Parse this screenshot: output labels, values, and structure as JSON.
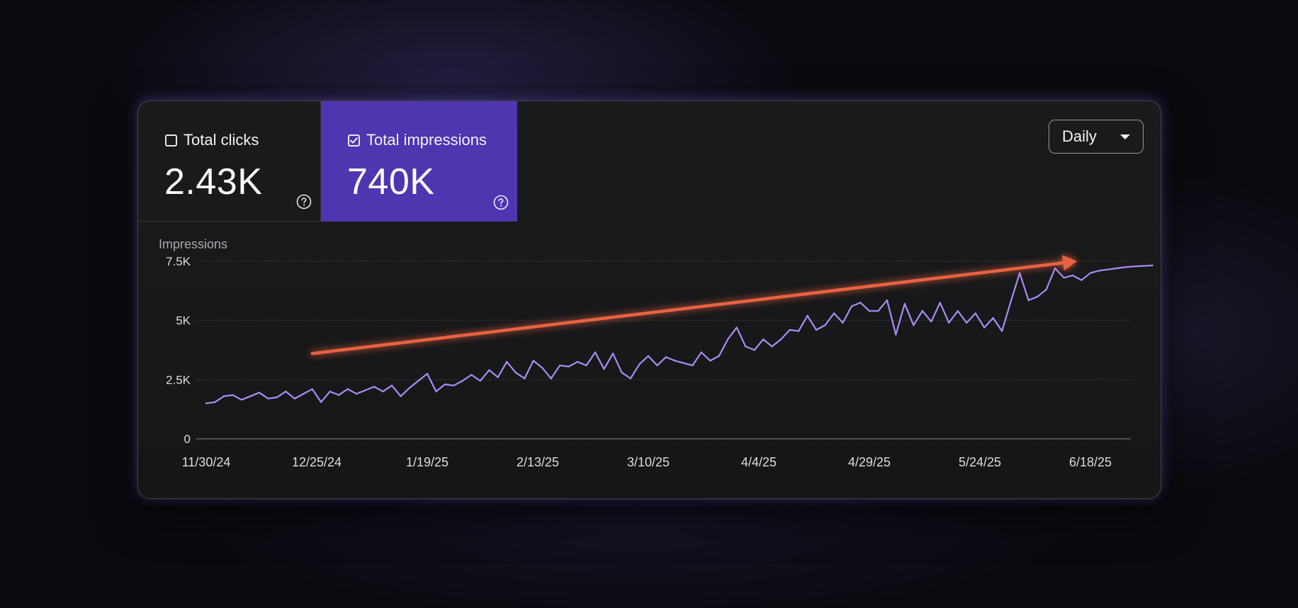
{
  "metrics": {
    "clicks": {
      "label": "Total clicks",
      "value": "2.43K",
      "checked": false
    },
    "impressions": {
      "label": "Total impressions",
      "value": "740K",
      "checked": true
    }
  },
  "dropdown": {
    "selected": "Daily"
  },
  "icons": {
    "help": "help-circle-icon",
    "checkbox_on": "check-icon",
    "caret": "chevron-down-icon"
  },
  "colors": {
    "accent": "#4f35b0",
    "line": "#a98df5",
    "arrow": "#e8623f"
  },
  "chart_data": {
    "type": "line",
    "ylabel": "Impressions",
    "ylim": [
      0,
      7500
    ],
    "yticks": [
      {
        "value": 0,
        "label": "0"
      },
      {
        "value": 2500,
        "label": "2.5K"
      },
      {
        "value": 5000,
        "label": "5K"
      },
      {
        "value": 7500,
        "label": "7.5K"
      }
    ],
    "xlim": [
      "2024-11-30",
      "2025-07-04"
    ],
    "xticks": [
      {
        "date": "2024-11-30",
        "label": "11/30/24"
      },
      {
        "date": "2024-12-25",
        "label": "12/25/24"
      },
      {
        "date": "2025-01-19",
        "label": "1/19/25"
      },
      {
        "date": "2025-02-13",
        "label": "2/13/25"
      },
      {
        "date": "2025-03-10",
        "label": "3/10/25"
      },
      {
        "date": "2025-04-04",
        "label": "4/4/25"
      },
      {
        "date": "2025-04-29",
        "label": "4/29/25"
      },
      {
        "date": "2025-05-24",
        "label": "5/24/25"
      },
      {
        "date": "2025-06-18",
        "label": "6/18/25"
      }
    ],
    "grid": true,
    "series": [
      {
        "name": "",
        "x": [
          "2024-11-30",
          "2024-12-02",
          "2024-12-04",
          "2024-12-06",
          "2024-12-08",
          "2024-12-10",
          "2024-12-12",
          "2024-12-14",
          "2024-12-16",
          "2024-12-18",
          "2024-12-20",
          "2024-12-22",
          "2024-12-24",
          "2024-12-26",
          "2024-12-28",
          "2024-12-30",
          "2025-01-01",
          "2025-01-03",
          "2025-01-05",
          "2025-01-07",
          "2025-01-09",
          "2025-01-11",
          "2025-01-13",
          "2025-01-15",
          "2025-01-17",
          "2025-01-19",
          "2025-01-21",
          "2025-01-23",
          "2025-01-25",
          "2025-01-27",
          "2025-01-29",
          "2025-01-31",
          "2025-02-02",
          "2025-02-04",
          "2025-02-06",
          "2025-02-08",
          "2025-02-10",
          "2025-02-12",
          "2025-02-14",
          "2025-02-16",
          "2025-02-18",
          "2025-02-20",
          "2025-02-22",
          "2025-02-24",
          "2025-02-26",
          "2025-02-28",
          "2025-03-02",
          "2025-03-04",
          "2025-03-06",
          "2025-03-08",
          "2025-03-10",
          "2025-03-12",
          "2025-03-14",
          "2025-03-16",
          "2025-03-18",
          "2025-03-20",
          "2025-03-22",
          "2025-03-24",
          "2025-03-26",
          "2025-03-28",
          "2025-03-30",
          "2025-04-01",
          "2025-04-03",
          "2025-04-05",
          "2025-04-07",
          "2025-04-09",
          "2025-04-11",
          "2025-04-13",
          "2025-04-15",
          "2025-04-17",
          "2025-04-19",
          "2025-04-21",
          "2025-04-23",
          "2025-04-25",
          "2025-04-27",
          "2025-04-29",
          "2025-05-01",
          "2025-05-03",
          "2025-05-05",
          "2025-05-07",
          "2025-05-09",
          "2025-05-11",
          "2025-05-13",
          "2025-05-15",
          "2025-05-17",
          "2025-05-19",
          "2025-05-21",
          "2025-05-23",
          "2025-05-25",
          "2025-05-27",
          "2025-05-29",
          "2025-05-31",
          "2025-06-02",
          "2025-06-04",
          "2025-06-06",
          "2025-06-08",
          "2025-06-10",
          "2025-06-12",
          "2025-06-14",
          "2025-06-16",
          "2025-06-18",
          "2025-06-20",
          "2025-06-22",
          "2025-06-24",
          "2025-06-26",
          "2025-06-28",
          "2025-06-30",
          "2025-07-02"
        ],
        "y": [
          1500,
          1550,
          1800,
          1850,
          1650,
          1800,
          1950,
          1700,
          1750,
          2000,
          1700,
          1900,
          2100,
          1550,
          2000,
          1850,
          2100,
          1900,
          2050,
          2200,
          2000,
          2250,
          1800,
          2150,
          2450,
          2750,
          2000,
          2300,
          2250,
          2450,
          2700,
          2450,
          2900,
          2600,
          3250,
          2800,
          2550,
          3300,
          3000,
          2550,
          3100,
          3050,
          3250,
          3100,
          3650,
          2950,
          3600,
          2800,
          2550,
          3150,
          3500,
          3100,
          3450,
          3300,
          3200,
          3100,
          3650,
          3300,
          3500,
          4200,
          4700,
          3900,
          3750,
          4200,
          3900,
          4200,
          4600,
          4550,
          5200,
          4600,
          4800,
          5300,
          4900,
          5600,
          5750,
          5400,
          5400,
          5850,
          4400,
          5700,
          4800,
          5400,
          4950,
          5750,
          4900,
          5400,
          4900,
          5300,
          4700,
          5100,
          4550,
          5800,
          7000,
          5850,
          6000,
          6300,
          7200,
          6800,
          6900,
          6700,
          7000,
          7100,
          7150,
          7200,
          7250,
          7280,
          7300,
          7320
        ],
        "color": "#a98df5"
      }
    ],
    "annotations": [
      {
        "type": "trend-arrow",
        "from": {
          "date": "2024-12-24",
          "value": 3600
        },
        "to": {
          "date": "2025-06-15",
          "value": 7500
        },
        "color": "#e8623f"
      }
    ]
  }
}
